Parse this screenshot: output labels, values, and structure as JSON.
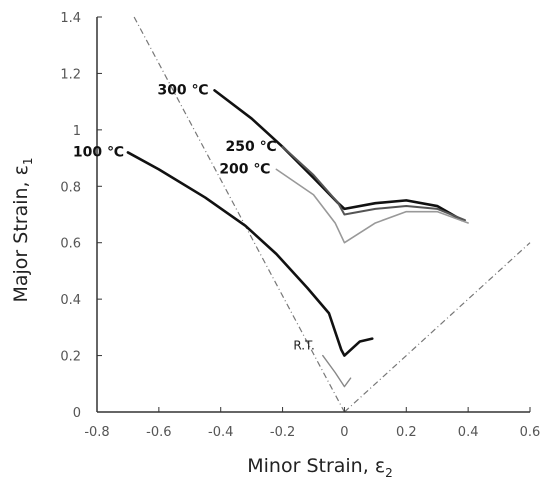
{
  "chart_data": {
    "type": "line",
    "xlabel": "Minor Strain, ",
    "xlabel_symbol": "ε",
    "xlabel_sub": "2",
    "ylabel": "Major Strain, ",
    "ylabel_symbol": "ε",
    "ylabel_sub": "1",
    "xlim": [
      -0.8,
      0.6
    ],
    "ylim": [
      0,
      1.4
    ],
    "xticks": [
      "-0.8",
      "-0.6",
      "-0.4",
      "-0.2",
      "0",
      "0.2",
      "0.4",
      "0.6"
    ],
    "yticks": [
      "0",
      "0.2",
      "0.4",
      "0.6",
      "0.8",
      "1",
      "1.2",
      "1.4"
    ],
    "grid": false,
    "series": [
      {
        "name": "300 ℃",
        "color": "#111111",
        "points": [
          [
            -0.42,
            1.14
          ],
          [
            -0.3,
            1.04
          ],
          [
            -0.2,
            0.94
          ],
          [
            -0.1,
            0.83
          ],
          [
            -0.02,
            0.74
          ],
          [
            0.0,
            0.72
          ],
          [
            0.1,
            0.74
          ],
          [
            0.2,
            0.75
          ],
          [
            0.3,
            0.73
          ],
          [
            0.38,
            0.68
          ]
        ]
      },
      {
        "name": "250 ℃",
        "color": "#555555",
        "points": [
          [
            -0.2,
            0.94
          ],
          [
            -0.1,
            0.84
          ],
          [
            -0.02,
            0.74
          ],
          [
            0.0,
            0.7
          ],
          [
            0.1,
            0.72
          ],
          [
            0.2,
            0.73
          ],
          [
            0.3,
            0.72
          ],
          [
            0.39,
            0.68
          ]
        ]
      },
      {
        "name": "200 ℃",
        "color": "#999999",
        "points": [
          [
            -0.22,
            0.86
          ],
          [
            -0.1,
            0.77
          ],
          [
            -0.03,
            0.67
          ],
          [
            0.0,
            0.6
          ],
          [
            0.1,
            0.67
          ],
          [
            0.2,
            0.71
          ],
          [
            0.3,
            0.71
          ],
          [
            0.4,
            0.67
          ]
        ]
      },
      {
        "name": "100 ℃",
        "color": "#111111",
        "points": [
          [
            -0.7,
            0.92
          ],
          [
            -0.6,
            0.86
          ],
          [
            -0.45,
            0.76
          ],
          [
            -0.32,
            0.66
          ],
          [
            -0.22,
            0.56
          ],
          [
            -0.12,
            0.44
          ],
          [
            -0.05,
            0.35
          ],
          [
            -0.01,
            0.22
          ],
          [
            0.0,
            0.2
          ],
          [
            0.05,
            0.25
          ],
          [
            0.09,
            0.26
          ]
        ]
      },
      {
        "name": "R.T.",
        "color": "#888888",
        "points": [
          [
            -0.07,
            0.2
          ],
          [
            -0.03,
            0.14
          ],
          [
            0.0,
            0.09
          ],
          [
            0.02,
            0.12
          ]
        ]
      }
    ],
    "reference_lines": [
      {
        "points": [
          [
            -0.68,
            1.42
          ],
          [
            0.0,
            0.0
          ]
        ],
        "color": "#777777",
        "dash": "6 3 1 3"
      },
      {
        "points": [
          [
            0.0,
            0.0
          ],
          [
            0.6,
            0.6
          ]
        ],
        "color": "#777777",
        "dash": "6 3 1 3"
      }
    ],
    "annotations": [
      {
        "text": "300 ℃",
        "series": 0
      },
      {
        "text": "250 ℃",
        "series": 1
      },
      {
        "text": "200 ℃",
        "series": 2
      },
      {
        "text": "100 ℃",
        "series": 3
      },
      {
        "text": "R.T.",
        "series": 4
      }
    ]
  }
}
